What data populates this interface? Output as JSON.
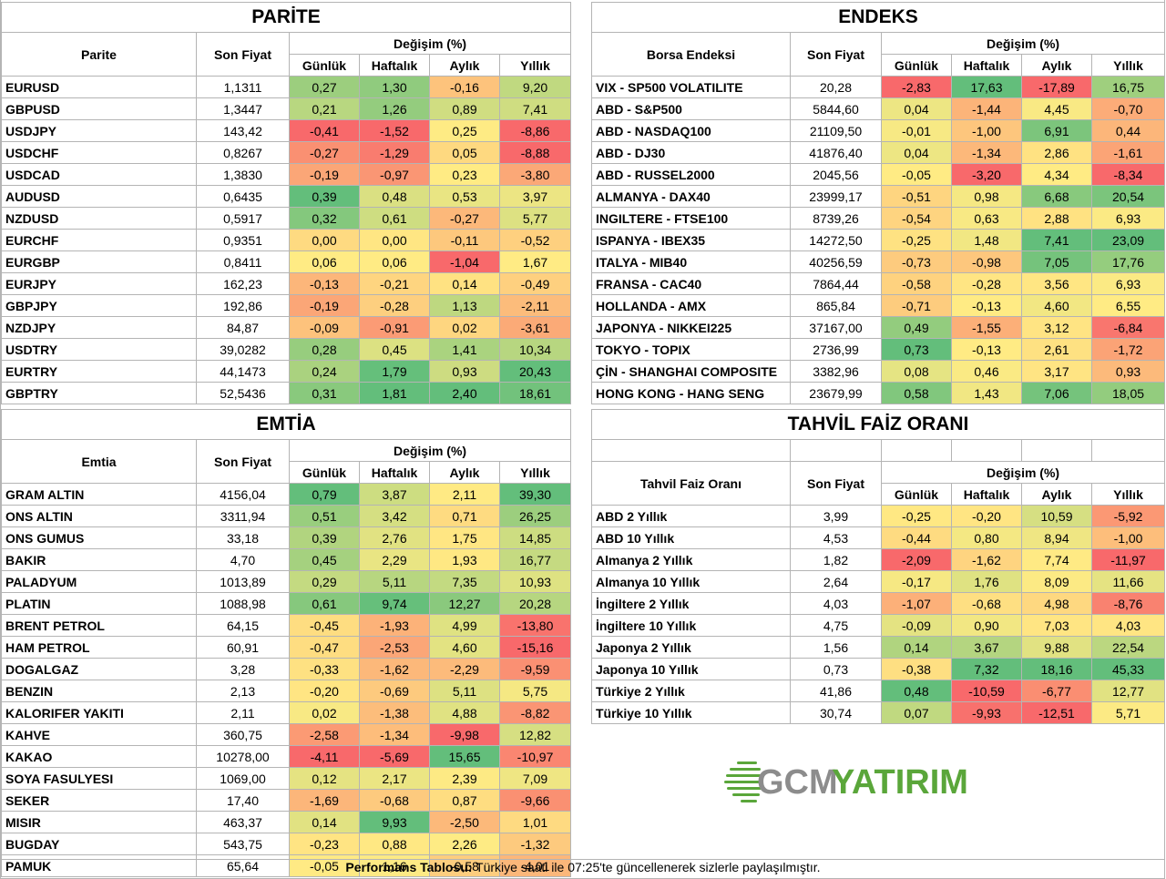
{
  "scale": {
    "neg": "#f8696b",
    "mid": "#ffeb84",
    "pos": "#63be7b"
  },
  "parite": {
    "title": "PARİTE",
    "col_name": "Parite",
    "col_price": "Son Fiyat",
    "col_change": "Değişim (%)",
    "periods": [
      "Günlük",
      "Haftalık",
      "Aylık",
      "Yıllık"
    ],
    "rows": [
      {
        "name": "EURUSD",
        "price": "1,1311",
        "values": [
          "0,27",
          "1,30",
          "-0,16",
          "9,20"
        ]
      },
      {
        "name": "GBPUSD",
        "price": "1,3447",
        "values": [
          "0,21",
          "1,26",
          "0,89",
          "7,41"
        ]
      },
      {
        "name": "USDJPY",
        "price": "143,42",
        "values": [
          "-0,41",
          "-1,52",
          "0,25",
          "-8,86"
        ]
      },
      {
        "name": "USDCHF",
        "price": "0,8267",
        "values": [
          "-0,27",
          "-1,29",
          "0,05",
          "-8,88"
        ]
      },
      {
        "name": "USDCAD",
        "price": "1,3830",
        "values": [
          "-0,19",
          "-0,97",
          "0,23",
          "-3,80"
        ]
      },
      {
        "name": "AUDUSD",
        "price": "0,6435",
        "values": [
          "0,39",
          "0,48",
          "0,53",
          "3,97"
        ]
      },
      {
        "name": "NZDUSD",
        "price": "0,5917",
        "values": [
          "0,32",
          "0,61",
          "-0,27",
          "5,77"
        ]
      },
      {
        "name": "EURCHF",
        "price": "0,9351",
        "values": [
          "0,00",
          "0,00",
          "-0,11",
          "-0,52"
        ]
      },
      {
        "name": "EURGBP",
        "price": "0,8411",
        "values": [
          "0,06",
          "0,06",
          "-1,04",
          "1,67"
        ]
      },
      {
        "name": "EURJPY",
        "price": "162,23",
        "values": [
          "-0,13",
          "-0,21",
          "0,14",
          "-0,49"
        ]
      },
      {
        "name": "GBPJPY",
        "price": "192,86",
        "values": [
          "-0,19",
          "-0,28",
          "1,13",
          "-2,11"
        ]
      },
      {
        "name": "NZDJPY",
        "price": "84,87",
        "values": [
          "-0,09",
          "-0,91",
          "0,02",
          "-3,61"
        ]
      },
      {
        "name": "USDTRY",
        "price": "39,0282",
        "values": [
          "0,28",
          "0,45",
          "1,41",
          "10,34"
        ]
      },
      {
        "name": "EURTRY",
        "price": "44,1473",
        "values": [
          "0,24",
          "1,79",
          "0,93",
          "20,43"
        ]
      },
      {
        "name": "GBPTRY",
        "price": "52,5436",
        "values": [
          "0,31",
          "1,81",
          "2,40",
          "18,61"
        ]
      }
    ]
  },
  "endeks": {
    "title": "ENDEKS",
    "col_name": "Borsa Endeksi",
    "col_price": "Son Fiyat",
    "col_change": "Değişim (%)",
    "periods": [
      "Günlük",
      "Haftalık",
      "Aylık",
      "Yıllık"
    ],
    "rows": [
      {
        "name": "VIX  - SP500 VOLATILITE",
        "price": "20,28",
        "values": [
          "-2,83",
          "17,63",
          "-17,89",
          "16,75"
        ]
      },
      {
        "name": "ABD - S&P500",
        "price": "5844,60",
        "values": [
          "0,04",
          "-1,44",
          "4,45",
          "-0,70"
        ]
      },
      {
        "name": "ABD - NASDAQ100",
        "price": "21109,50",
        "values": [
          "-0,01",
          "-1,00",
          "6,91",
          "0,44"
        ]
      },
      {
        "name": "ABD - DJ30",
        "price": "41876,40",
        "values": [
          "0,04",
          "-1,34",
          "2,86",
          "-1,61"
        ]
      },
      {
        "name": "ABD - RUSSEL2000",
        "price": "2045,56",
        "values": [
          "-0,05",
          "-3,20",
          "4,34",
          "-8,34"
        ]
      },
      {
        "name": "ALMANYA - DAX40",
        "price": "23999,17",
        "values": [
          "-0,51",
          "0,98",
          "6,68",
          "20,54"
        ]
      },
      {
        "name": "INGILTERE - FTSE100",
        "price": "8739,26",
        "values": [
          "-0,54",
          "0,63",
          "2,88",
          "6,93"
        ]
      },
      {
        "name": "ISPANYA - IBEX35",
        "price": "14272,50",
        "values": [
          "-0,25",
          "1,48",
          "7,41",
          "23,09"
        ]
      },
      {
        "name": "ITALYA - MIB40",
        "price": "40256,59",
        "values": [
          "-0,73",
          "-0,98",
          "7,05",
          "17,76"
        ]
      },
      {
        "name": "FRANSA - CAC40",
        "price": "7864,44",
        "values": [
          "-0,58",
          "-0,28",
          "3,56",
          "6,93"
        ]
      },
      {
        "name": "HOLLANDA - AMX",
        "price": "865,84",
        "values": [
          "-0,71",
          "-0,13",
          "4,60",
          "6,55"
        ]
      },
      {
        "name": "JAPONYA - NIKKEI225",
        "price": "37167,00",
        "values": [
          "0,49",
          "-1,55",
          "3,12",
          "-6,84"
        ]
      },
      {
        "name": "TOKYO - TOPIX",
        "price": "2736,99",
        "values": [
          "0,73",
          "-0,13",
          "2,61",
          "-1,72"
        ]
      },
      {
        "name": "ÇİN - SHANGHAI COMPOSITE",
        "price": "3382,96",
        "values": [
          "0,08",
          "0,46",
          "3,17",
          "0,93"
        ]
      },
      {
        "name": "HONG KONG - HANG SENG",
        "price": "23679,99",
        "values": [
          "0,58",
          "1,43",
          "7,06",
          "18,05"
        ]
      }
    ]
  },
  "emtia": {
    "title": "EMTİA",
    "col_name": "Emtia",
    "col_price": "Son Fiyat",
    "col_change": "Değişim (%)",
    "periods": [
      "Günlük",
      "Haftalık",
      "Aylık",
      "Yıllık"
    ],
    "rows": [
      {
        "name": "GRAM ALTIN",
        "price": "4156,04",
        "values": [
          "0,79",
          "3,87",
          "2,11",
          "39,30"
        ]
      },
      {
        "name": "ONS ALTIN",
        "price": "3311,94",
        "values": [
          "0,51",
          "3,42",
          "0,71",
          "26,25"
        ]
      },
      {
        "name": "ONS GUMUS",
        "price": "33,18",
        "values": [
          "0,39",
          "2,76",
          "1,75",
          "14,85"
        ]
      },
      {
        "name": "BAKIR",
        "price": "4,70",
        "values": [
          "0,45",
          "2,29",
          "1,93",
          "16,77"
        ]
      },
      {
        "name": "PALADYUM",
        "price": "1013,89",
        "values": [
          "0,29",
          "5,11",
          "7,35",
          "10,93"
        ]
      },
      {
        "name": "PLATIN",
        "price": "1088,98",
        "values": [
          "0,61",
          "9,74",
          "12,27",
          "20,28"
        ]
      },
      {
        "name": "BRENT PETROL",
        "price": "64,15",
        "values": [
          "-0,45",
          "-1,93",
          "4,99",
          "-13,80"
        ]
      },
      {
        "name": "HAM PETROL",
        "price": "60,91",
        "values": [
          "-0,47",
          "-2,53",
          "4,60",
          "-15,16"
        ]
      },
      {
        "name": "DOGALGAZ",
        "price": "3,28",
        "values": [
          "-0,33",
          "-1,62",
          "-2,29",
          "-9,59"
        ]
      },
      {
        "name": "BENZIN",
        "price": "2,13",
        "values": [
          "-0,20",
          "-0,69",
          "5,11",
          "5,75"
        ]
      },
      {
        "name": "KALORIFER YAKITI",
        "price": "2,11",
        "values": [
          "0,02",
          "-1,38",
          "4,88",
          "-8,82"
        ]
      },
      {
        "name": "KAHVE",
        "price": "360,75",
        "values": [
          "-2,58",
          "-1,34",
          "-9,98",
          "12,82"
        ]
      },
      {
        "name": "KAKAO",
        "price": "10278,00",
        "values": [
          "-4,11",
          "-5,69",
          "15,65",
          "-10,97"
        ]
      },
      {
        "name": "SOYA FASULYESI",
        "price": "1069,00",
        "values": [
          "0,12",
          "2,17",
          "2,39",
          "7,09"
        ]
      },
      {
        "name": "SEKER",
        "price": "17,40",
        "values": [
          "-1,69",
          "-0,68",
          "0,87",
          "-9,66"
        ]
      },
      {
        "name": "MISIR",
        "price": "463,37",
        "values": [
          "0,14",
          "9,93",
          "-2,50",
          "1,01"
        ]
      },
      {
        "name": "BUGDAY",
        "price": "543,75",
        "values": [
          "-0,23",
          "0,88",
          "2,26",
          "-1,32"
        ]
      },
      {
        "name": "PAMUK",
        "price": "65,64",
        "values": [
          "-0,05",
          "1,16",
          "-0,58",
          "-4,01"
        ]
      }
    ]
  },
  "tahvil": {
    "title": "TAHVİL FAİZ ORANI",
    "col_name": "Tahvil Faiz Oranı",
    "col_price": "Son Fiyat",
    "col_change": "Değişim (%)",
    "periods": [
      "Günlük",
      "Haftalık",
      "Aylık",
      "Yıllık"
    ],
    "rows": [
      {
        "name": "ABD 2 Yıllık",
        "price": "3,99",
        "values": [
          "-0,25",
          "-0,20",
          "10,59",
          "-5,92"
        ]
      },
      {
        "name": "ABD 10 Yıllık",
        "price": "4,53",
        "values": [
          "-0,44",
          "0,80",
          "8,94",
          "-1,00"
        ]
      },
      {
        "name": "Almanya 2 Yıllık",
        "price": "1,82",
        "values": [
          "-2,09",
          "-1,62",
          "7,74",
          "-11,97"
        ]
      },
      {
        "name": "Almanya 10 Yıllık",
        "price": "2,64",
        "values": [
          "-0,17",
          "1,76",
          "8,09",
          "11,66"
        ]
      },
      {
        "name": "İngiltere 2 Yıllık",
        "price": "4,03",
        "values": [
          "-1,07",
          "-0,68",
          "4,98",
          "-8,76"
        ]
      },
      {
        "name": "İngiltere 10 Yıllık",
        "price": "4,75",
        "values": [
          "-0,09",
          "0,90",
          "7,03",
          "4,03"
        ]
      },
      {
        "name": "Japonya 2 Yıllık",
        "price": "1,56",
        "values": [
          "0,14",
          "3,67",
          "9,88",
          "22,54"
        ]
      },
      {
        "name": "Japonya 10 Yıllık",
        "price": "0,73",
        "values": [
          "-0,38",
          "7,32",
          "18,16",
          "45,33"
        ]
      },
      {
        "name": "Türkiye 2 Yıllık",
        "price": "41,86",
        "values": [
          "0,48",
          "-10,59",
          "-6,77",
          "12,77"
        ]
      },
      {
        "name": "Türkiye 10 Yıllık",
        "price": "30,74",
        "values": [
          "0,07",
          "-9,93",
          "-12,51",
          "5,71"
        ]
      }
    ]
  },
  "logo": {
    "brand_gcm": "GCM",
    "brand_yatirim": "YATIRIM",
    "green": "#5aa63a",
    "gray": "#8c8c8c"
  },
  "footer": {
    "bold": "Performans Tablosu:",
    "text": " Türkiye saati ile 07:25'te güncellenerek sizlerle paylaşılmıştır."
  }
}
